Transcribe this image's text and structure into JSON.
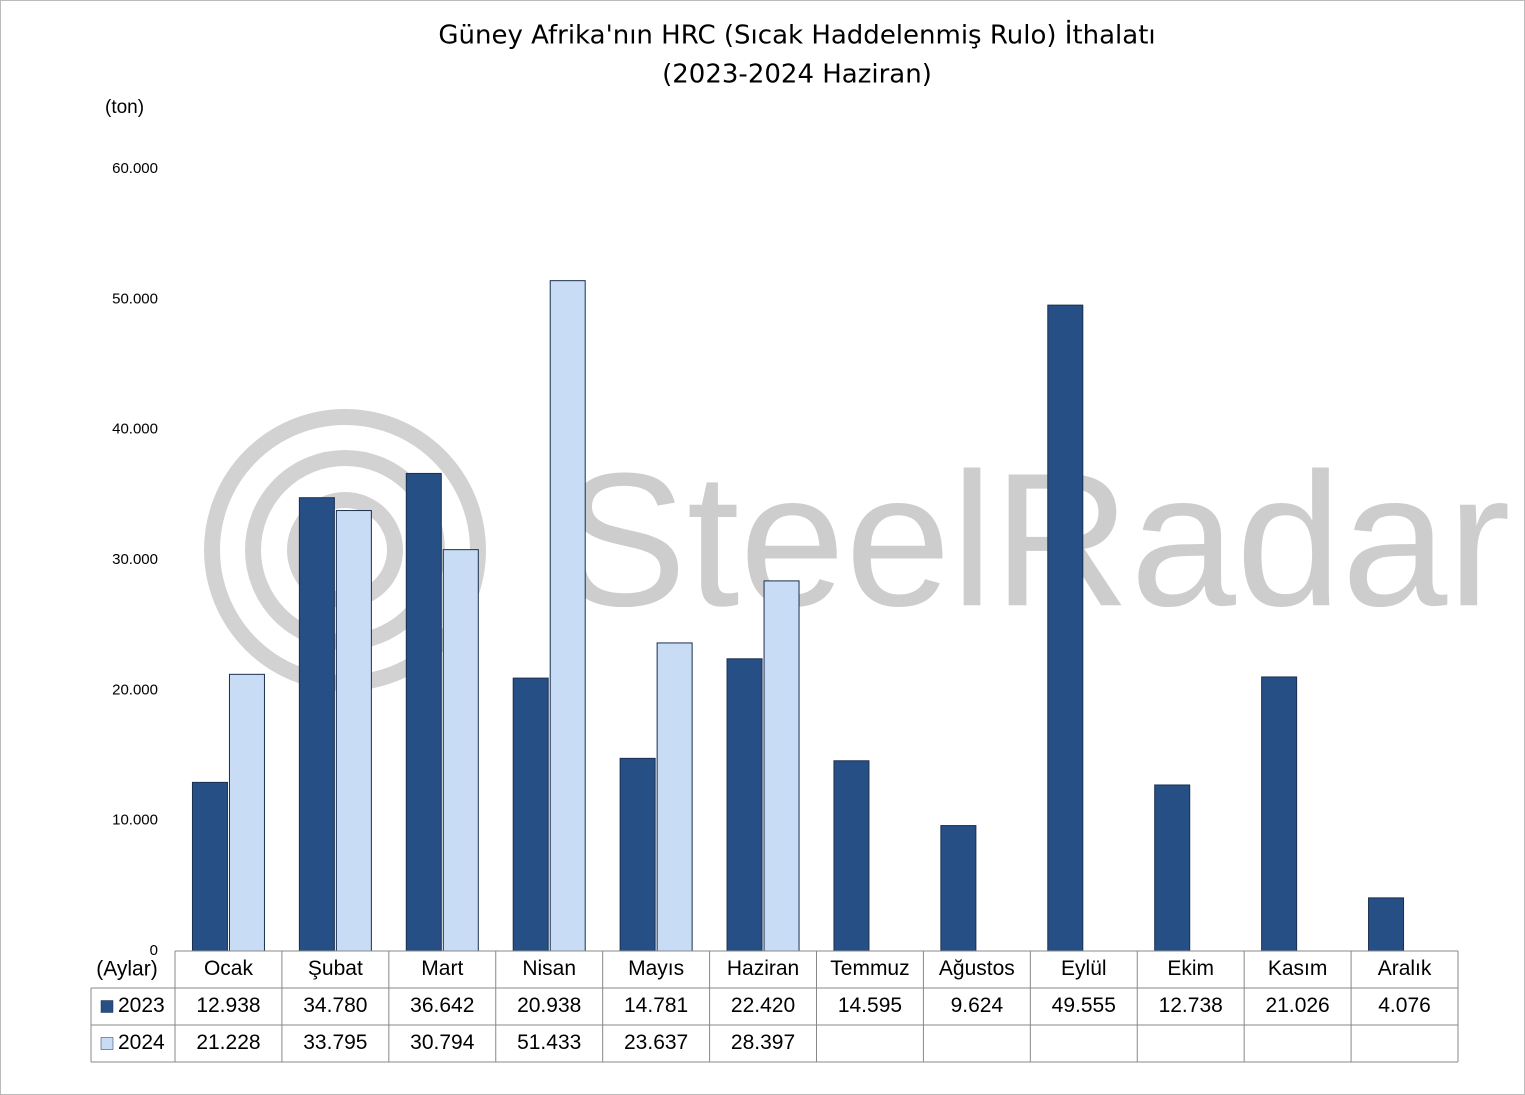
{
  "chart_data": {
    "type": "bar",
    "title": "Güney Afrika'nın HRC (Sıcak Haddelenmiş Rulo) İthalatı",
    "subtitle": "(2023-2024 Haziran)",
    "y_label": "(ton)",
    "x_label": "(Aylar)",
    "watermark": "SteelRadar",
    "categories": [
      "Ocak",
      "Şubat",
      "Mart",
      "Nisan",
      "Mayıs",
      "Haziran",
      "Temmuz",
      "Ağustos",
      "Eylül",
      "Ekim",
      "Kasım",
      "Aralık"
    ],
    "series": [
      {
        "name": "2023",
        "color": "#264f86",
        "values": [
          12938,
          34780,
          36642,
          20938,
          14781,
          22420,
          14595,
          9624,
          49555,
          12738,
          21026,
          4076
        ],
        "value_labels": [
          "12.938",
          "34.780",
          "36.642",
          "20.938",
          "14.781",
          "22.420",
          "14.595",
          "9.624",
          "49.555",
          "12.738",
          "21.026",
          "4.076"
        ]
      },
      {
        "name": "2024",
        "color": "#c9dcf5",
        "values": [
          21228,
          33795,
          30794,
          51433,
          23637,
          28397,
          null,
          null,
          null,
          null,
          null,
          null
        ],
        "value_labels": [
          "21.228",
          "33.795",
          "30.794",
          "51.433",
          "23.637",
          "28.397",
          null,
          null,
          null,
          null,
          null,
          null
        ]
      }
    ],
    "ylim": [
      0,
      60000
    ],
    "yticks": [
      0,
      {
        "value": 10000,
        "label": "10.000"
      },
      {
        "value": 20000,
        "label": "20.000"
      },
      {
        "value": 30000,
        "label": "30.000"
      },
      {
        "value": 40000,
        "label": "40.000"
      },
      {
        "value": 50000,
        "label": "50.000"
      },
      {
        "value": 60000,
        "label": "60.000"
      }
    ],
    "grid": false
  }
}
